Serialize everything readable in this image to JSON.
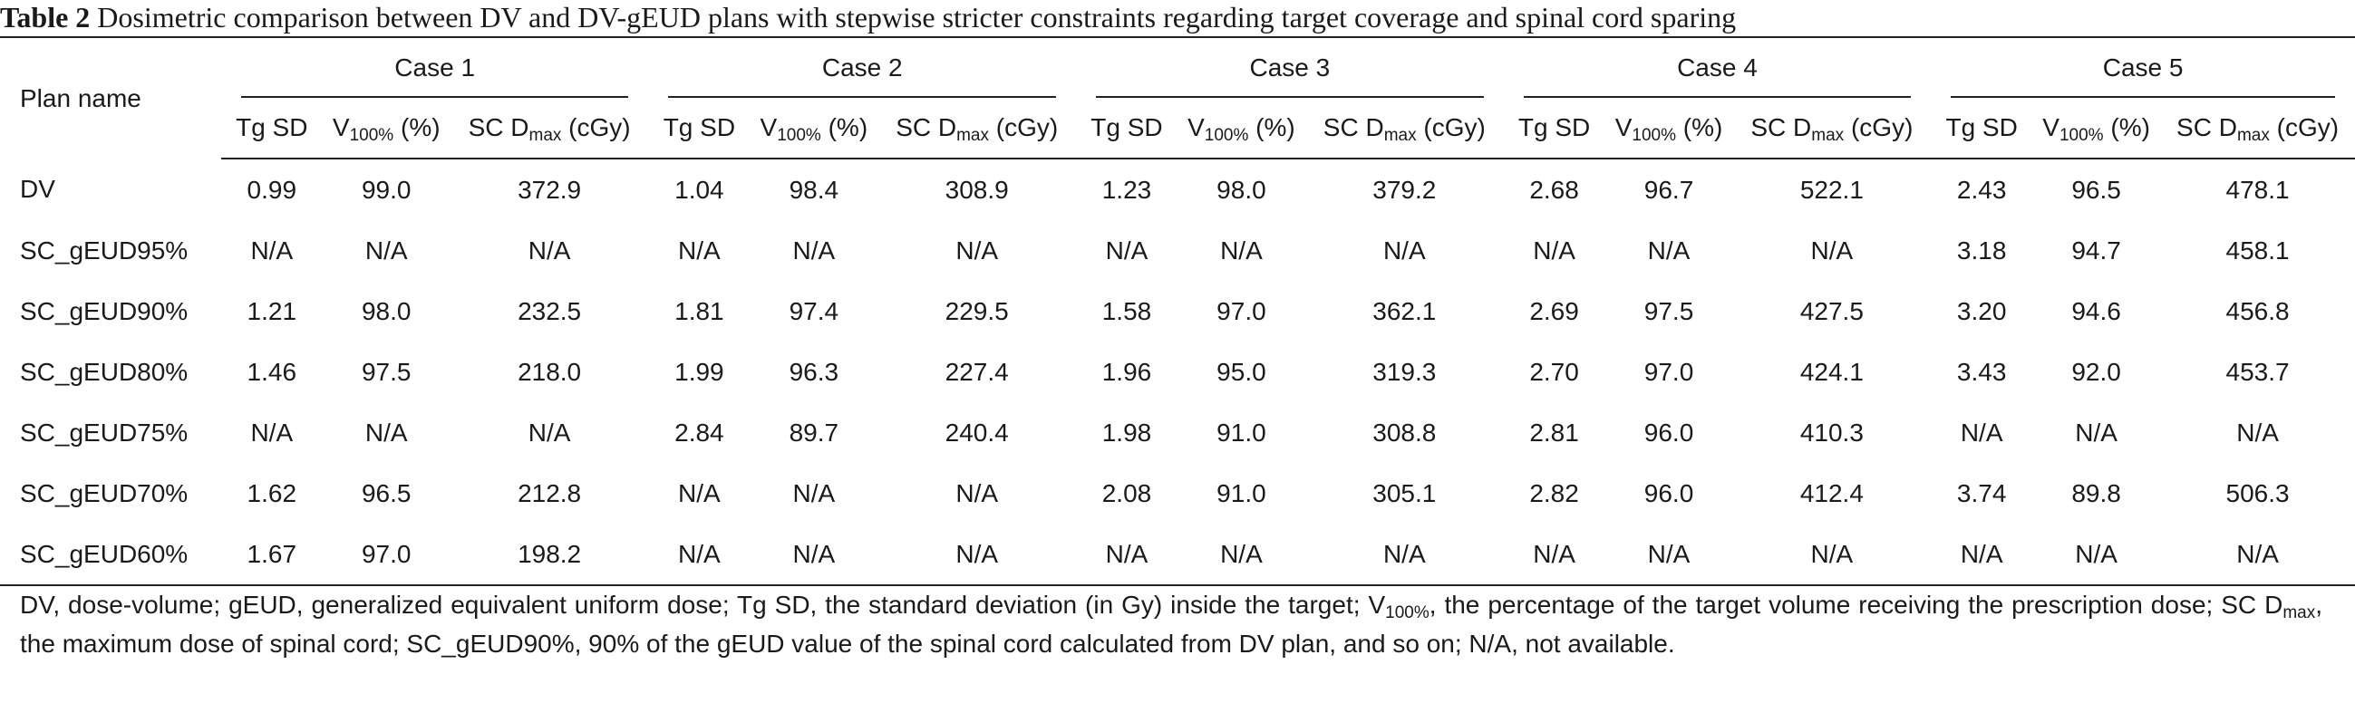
{
  "caption": {
    "label": "Table 2",
    "text": "Dosimetric comparison between DV and DV-gEUD plans with stepwise stricter constraints regarding target coverage and spinal cord sparing"
  },
  "table": {
    "plan_header": "Plan name",
    "cases": [
      "Case 1",
      "Case 2",
      "Case 3",
      "Case 4",
      "Case 5"
    ],
    "sub_headers": {
      "tg_sd": "Tg SD",
      "v_main": "V",
      "v_sub": "100%",
      "v_unit": " (%)",
      "sc_main": "SC D",
      "sc_sub": "max",
      "sc_unit": " (cGy)"
    },
    "rows": [
      {
        "plan": "DV",
        "values": [
          "0.99",
          "99.0",
          "372.9",
          "1.04",
          "98.4",
          "308.9",
          "1.23",
          "98.0",
          "379.2",
          "2.68",
          "96.7",
          "522.1",
          "2.43",
          "96.5",
          "478.1"
        ]
      },
      {
        "plan": "SC_gEUD95%",
        "values": [
          "N/A",
          "N/A",
          "N/A",
          "N/A",
          "N/A",
          "N/A",
          "N/A",
          "N/A",
          "N/A",
          "N/A",
          "N/A",
          "N/A",
          "3.18",
          "94.7",
          "458.1"
        ]
      },
      {
        "plan": "SC_gEUD90%",
        "values": [
          "1.21",
          "98.0",
          "232.5",
          "1.81",
          "97.4",
          "229.5",
          "1.58",
          "97.0",
          "362.1",
          "2.69",
          "97.5",
          "427.5",
          "3.20",
          "94.6",
          "456.8"
        ]
      },
      {
        "plan": "SC_gEUD80%",
        "values": [
          "1.46",
          "97.5",
          "218.0",
          "1.99",
          "96.3",
          "227.4",
          "1.96",
          "95.0",
          "319.3",
          "2.70",
          "97.0",
          "424.1",
          "3.43",
          "92.0",
          "453.7"
        ]
      },
      {
        "plan": "SC_gEUD75%",
        "values": [
          "N/A",
          "N/A",
          "N/A",
          "2.84",
          "89.7",
          "240.4",
          "1.98",
          "91.0",
          "308.8",
          "2.81",
          "96.0",
          "410.3",
          "N/A",
          "N/A",
          "N/A"
        ]
      },
      {
        "plan": "SC_gEUD70%",
        "values": [
          "1.62",
          "96.5",
          "212.8",
          "N/A",
          "N/A",
          "N/A",
          "2.08",
          "91.0",
          "305.1",
          "2.82",
          "96.0",
          "412.4",
          "3.74",
          "89.8",
          "506.3"
        ]
      },
      {
        "plan": "SC_gEUD60%",
        "values": [
          "1.67",
          "97.0",
          "198.2",
          "N/A",
          "N/A",
          "N/A",
          "N/A",
          "N/A",
          "N/A",
          "N/A",
          "N/A",
          "N/A",
          "N/A",
          "N/A",
          "N/A"
        ]
      }
    ]
  },
  "footnote": {
    "p1": "DV, dose-volume; gEUD, generalized equivalent uniform dose; Tg SD, the standard deviation (in Gy) inside the target; V",
    "p1_sub": "100%",
    "p2": ", the percentage of the target volume receiving the prescription dose; SC D",
    "p2_sub": "max",
    "p3": ", the maximum dose of spinal cord; SC_gEUD90%, 90% of the gEUD value of the spinal cord calculated from DV plan, and so on; N/A, not available."
  }
}
